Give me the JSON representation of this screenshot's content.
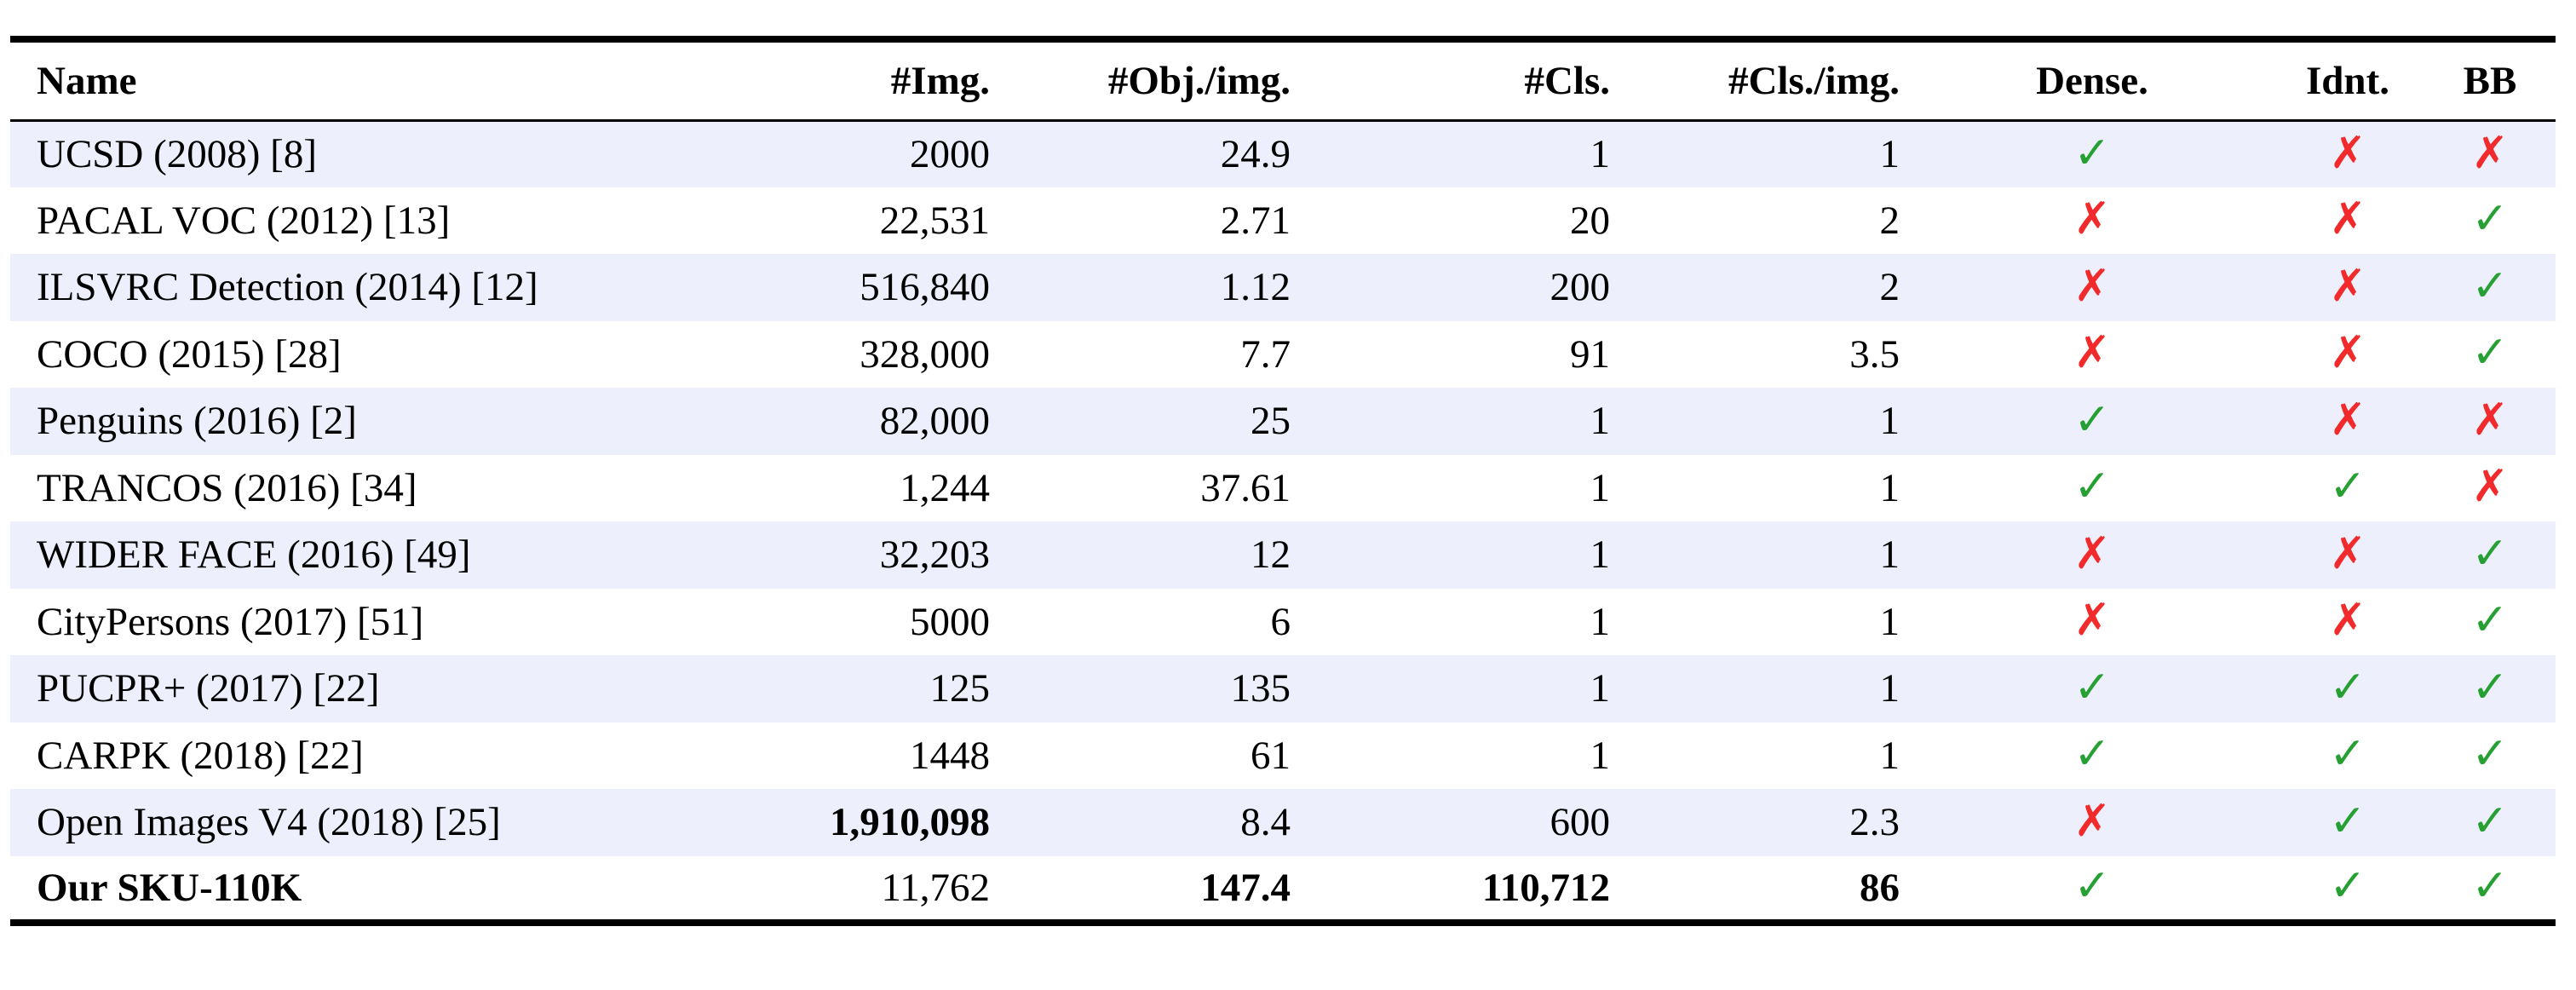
{
  "table": {
    "columns": [
      {
        "key": "name",
        "label": "Name",
        "align": "left"
      },
      {
        "key": "img",
        "label": "#Img.",
        "align": "right"
      },
      {
        "key": "obj_per_img",
        "label": "#Obj./img.",
        "align": "right"
      },
      {
        "key": "cls",
        "label": "#Cls.",
        "align": "right"
      },
      {
        "key": "cls_per_img",
        "label": "#Cls./img.",
        "align": "right"
      },
      {
        "key": "dense",
        "label": "Dense.",
        "align": "center"
      },
      {
        "key": "idnt",
        "label": "Idnt.",
        "align": "center"
      },
      {
        "key": "bb",
        "label": "BB",
        "align": "center"
      }
    ],
    "glyphs": {
      "check": "✓",
      "cross": "✗"
    },
    "colors": {
      "check_green": "#27a033",
      "cross_red": "#f12b2b",
      "row_band": "#edf0fc",
      "rule_black": "#000000"
    },
    "rows": [
      {
        "name": "UCSD (2008) [8]",
        "img": "2000",
        "obj_per_img": "24.9",
        "cls": "1",
        "cls_per_img": "1",
        "dense": "check",
        "idnt": "cross",
        "bb": "cross",
        "bold_cells": []
      },
      {
        "name": "PACAL VOC (2012) [13]",
        "img": "22,531",
        "obj_per_img": "2.71",
        "cls": "20",
        "cls_per_img": "2",
        "dense": "cross",
        "idnt": "cross",
        "bb": "check",
        "bold_cells": []
      },
      {
        "name": "ILSVRC Detection (2014) [12]",
        "img": "516,840",
        "obj_per_img": "1.12",
        "cls": "200",
        "cls_per_img": "2",
        "dense": "cross",
        "idnt": "cross",
        "bb": "check",
        "bold_cells": []
      },
      {
        "name": "COCO (2015) [28]",
        "img": "328,000",
        "obj_per_img": "7.7",
        "cls": "91",
        "cls_per_img": "3.5",
        "dense": "cross",
        "idnt": "cross",
        "bb": "check",
        "bold_cells": []
      },
      {
        "name": "Penguins (2016) [2]",
        "img": "82,000",
        "obj_per_img": "25",
        "cls": "1",
        "cls_per_img": "1",
        "dense": "check",
        "idnt": "cross",
        "bb": "cross",
        "bold_cells": []
      },
      {
        "name": "TRANCOS (2016) [34]",
        "img": "1,244",
        "obj_per_img": "37.61",
        "cls": "1",
        "cls_per_img": "1",
        "dense": "check",
        "idnt": "check",
        "bb": "cross",
        "bold_cells": []
      },
      {
        "name": "WIDER FACE (2016) [49]",
        "img": "32,203",
        "obj_per_img": "12",
        "cls": "1",
        "cls_per_img": "1",
        "dense": "cross",
        "idnt": "cross",
        "bb": "check",
        "bold_cells": []
      },
      {
        "name": "CityPersons (2017) [51]",
        "img": "5000",
        "obj_per_img": "6",
        "cls": "1",
        "cls_per_img": "1",
        "dense": "cross",
        "idnt": "cross",
        "bb": "check",
        "bold_cells": []
      },
      {
        "name": "PUCPR+ (2017) [22]",
        "img": "125",
        "obj_per_img": "135",
        "cls": "1",
        "cls_per_img": "1",
        "dense": "check",
        "idnt": "check",
        "bb": "check",
        "bold_cells": []
      },
      {
        "name": "CARPK (2018) [22]",
        "img": "1448",
        "obj_per_img": "61",
        "cls": "1",
        "cls_per_img": "1",
        "dense": "check",
        "idnt": "check",
        "bb": "check",
        "bold_cells": []
      },
      {
        "name": "Open Images V4 (2018) [25]",
        "img": "1,910,098",
        "obj_per_img": "8.4",
        "cls": "600",
        "cls_per_img": "2.3",
        "dense": "cross",
        "idnt": "check",
        "bb": "check",
        "bold_cells": [
          "img"
        ]
      },
      {
        "name": "Our SKU-110K",
        "img": "11,762",
        "obj_per_img": "147.4",
        "cls": "110,712",
        "cls_per_img": "86",
        "dense": "check",
        "idnt": "check",
        "bb": "check",
        "bold_cells": [
          "name",
          "obj_per_img",
          "cls",
          "cls_per_img"
        ]
      }
    ]
  }
}
